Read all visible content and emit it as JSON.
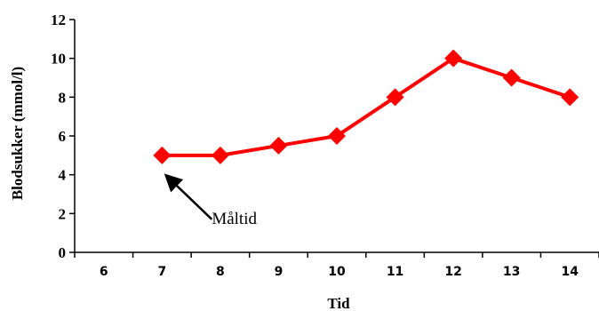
{
  "chart_data": {
    "type": "line",
    "xlabel": "Tid",
    "ylabel": "Blodsukker (mmol/l)",
    "categories": [
      "6",
      "7",
      "8",
      "9",
      "10",
      "11",
      "12",
      "13",
      "14"
    ],
    "ylim": [
      0,
      12
    ],
    "yticks": [
      0,
      2,
      4,
      6,
      8,
      10,
      12
    ],
    "grid": false,
    "legend": "none",
    "series": [
      {
        "values": [
          null,
          5,
          5,
          5.5,
          6,
          8,
          10,
          9,
          8
        ],
        "color": "#ff0000",
        "marker": "diamond"
      }
    ],
    "annotations": [
      {
        "text": "Måltid",
        "points_to": {
          "x": "7",
          "y": 5
        },
        "arrow": true
      }
    ]
  }
}
